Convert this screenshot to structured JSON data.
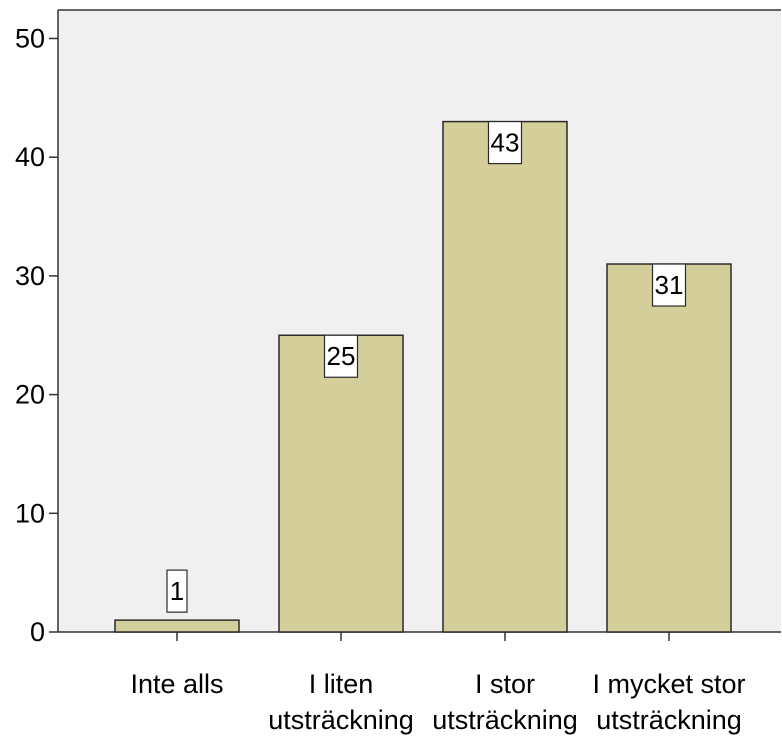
{
  "chart_data": {
    "type": "bar",
    "title": "",
    "xlabel": "",
    "ylabel": "",
    "categories": [
      [
        "Inte alls"
      ],
      [
        "I liten",
        "utsträckning"
      ],
      [
        "I stor",
        "utsträckning"
      ],
      [
        "I mycket stor",
        "utsträckning"
      ]
    ],
    "values": [
      1,
      25,
      43,
      31
    ],
    "data_labels": [
      "1",
      "25",
      "43",
      "31"
    ],
    "ylim": [
      0,
      52.4
    ],
    "yticks": [
      0,
      10,
      20,
      30,
      40,
      50
    ],
    "ytick_labels": [
      "0",
      "10",
      "20",
      "30",
      "40",
      "50"
    ],
    "grid": false,
    "legend": false,
    "colors": {
      "bar_fill": "#d3ce9a",
      "bar_stroke": "#2b2b2b",
      "plot_background": "#f0f0f0",
      "axis": "#333333",
      "label_box": "#ffffff"
    }
  }
}
